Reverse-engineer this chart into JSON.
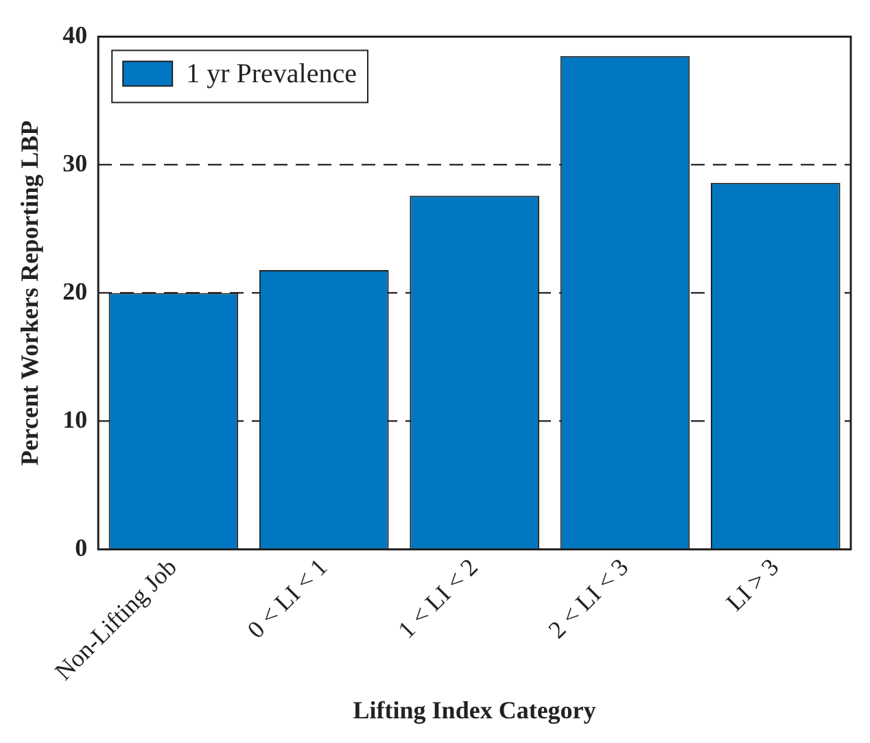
{
  "chart_data": {
    "type": "bar",
    "xlabel": "Lifting Index Category",
    "ylabel": "Percent Workers Reporting LBP",
    "categories": [
      "Non-Lifting Job",
      "0 < LI < 1",
      "1 < LI < 2",
      "2 < LI < 3",
      "LI > 3"
    ],
    "series": [
      {
        "name": "1 yr Prevalence",
        "color": "#0077c0",
        "values": [
          20.0,
          21.8,
          27.6,
          38.5,
          28.6
        ]
      }
    ],
    "ylim": [
      0,
      40
    ],
    "yticks": [
      0,
      10,
      20,
      30,
      40
    ],
    "grid": "y",
    "legend": "top left"
  }
}
